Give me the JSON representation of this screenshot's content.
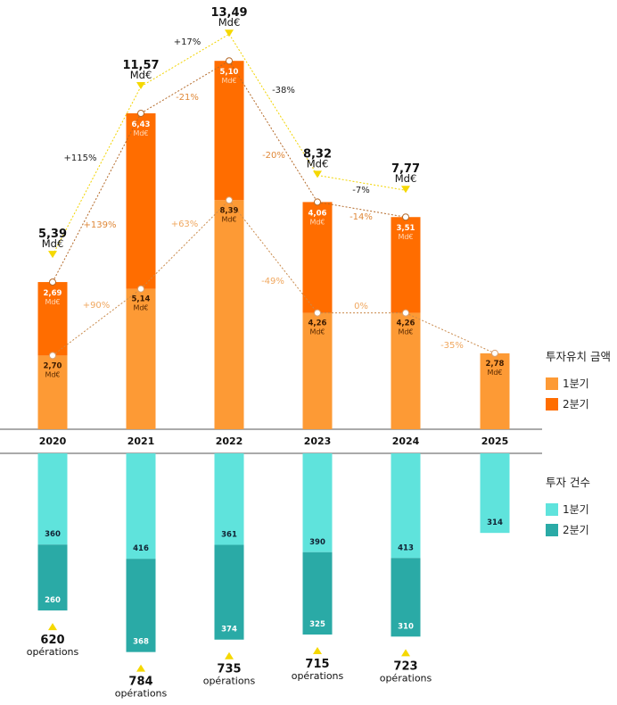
{
  "chart_data": [
    {
      "type": "bar",
      "stacked": true,
      "categories": [
        "2020",
        "2021",
        "2022",
        "2023",
        "2024",
        "2025"
      ],
      "legend_title": "투자유치 금액",
      "legend_position": "right",
      "unit": "Md€",
      "series": [
        {
          "name": "1분기",
          "color": "#fd9a35",
          "values": [
            2.7,
            5.14,
            8.39,
            4.26,
            4.26,
            2.78
          ],
          "labels": [
            "2,70",
            "5,14",
            "8,39",
            "4,26",
            "4,26",
            "2,78"
          ]
        },
        {
          "name": "2분기",
          "color": "#ff6d00",
          "values": [
            2.69,
            6.43,
            5.1,
            4.06,
            3.51,
            null
          ],
          "labels": [
            "2,69",
            "6,43",
            "5,10",
            "4,06",
            "3,51",
            ""
          ]
        }
      ],
      "totals": {
        "values": [
          5.39,
          11.57,
          13.49,
          8.32,
          7.77
        ],
        "labels": [
          "5,39",
          "11,57",
          "13,49",
          "8,32",
          "7,77"
        ],
        "color": "#f5d800"
      },
      "changes": {
        "totals": [
          "+115%",
          "+17%",
          "-38%",
          "-7%"
        ],
        "q2": [
          "+139%",
          "-21%",
          "-20%",
          "-14%"
        ],
        "q1": [
          "+90%",
          "+63%",
          "-49%",
          "0%",
          "-35%"
        ]
      }
    },
    {
      "type": "bar",
      "stacked": true,
      "categories": [
        "2020",
        "2021",
        "2022",
        "2023",
        "2024",
        "2025"
      ],
      "legend_title": "투자 건수",
      "legend_position": "right",
      "series": [
        {
          "name": "1분기",
          "color": "#5fe3dc",
          "values": [
            360,
            416,
            361,
            390,
            413,
            314
          ]
        },
        {
          "name": "2분기",
          "color": "#2aaaa6",
          "values": [
            260,
            368,
            374,
            325,
            310,
            null
          ]
        }
      ],
      "totals": {
        "values": [
          620,
          784,
          735,
          715,
          723
        ],
        "suffix": "opérations"
      }
    }
  ]
}
